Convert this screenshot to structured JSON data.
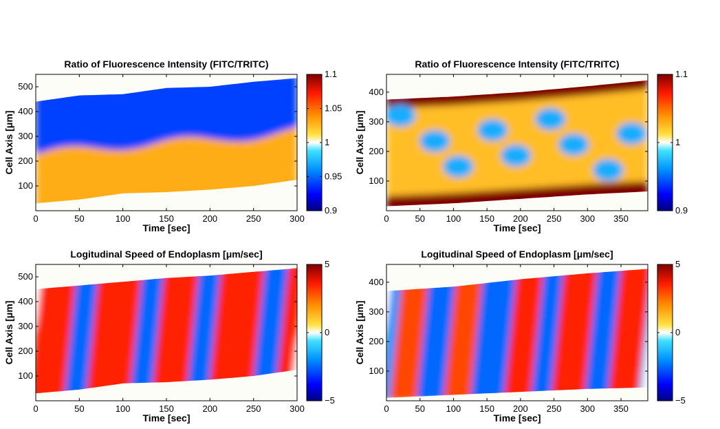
{
  "chart_data": [
    {
      "type": "heatmap",
      "title": "Ratio of Fluorescence Intensity (FITC/TRITC)",
      "xlabel": "Time [sec]",
      "ylabel": "Cell Axis [μm]",
      "xlim": [
        0,
        300
      ],
      "ylim": [
        0,
        550
      ],
      "xticks": [
        "0",
        "50",
        "100",
        "150",
        "200",
        "250",
        "300"
      ],
      "xtick_values": [
        0,
        50,
        100,
        150,
        200,
        250,
        300
      ],
      "yticks": [
        "100",
        "200",
        "300",
        "400",
        "500"
      ],
      "ytick_values": [
        100,
        200,
        300,
        400,
        500
      ],
      "colorbar": {
        "range": [
          0.9,
          1.1
        ],
        "center": 1.0,
        "ticks": [
          "1.1",
          "1.05",
          "1",
          "0.95",
          "0.9"
        ],
        "tick_values": [
          1.1,
          1.05,
          1.0,
          0.95,
          0.9
        ]
      },
      "cell_bounds": {
        "lower": [
          [
            0,
            30
          ],
          [
            50,
            45
          ],
          [
            100,
            70
          ],
          [
            150,
            75
          ],
          [
            200,
            85
          ],
          [
            250,
            100
          ],
          [
            300,
            125
          ]
        ],
        "upper": [
          [
            0,
            440
          ],
          [
            50,
            465
          ],
          [
            100,
            470
          ],
          [
            150,
            495
          ],
          [
            200,
            500
          ],
          [
            250,
            520
          ],
          [
            300,
            535
          ]
        ]
      },
      "bands": [
        {
          "region": "upper",
          "value": 0.94,
          "description": "blue band"
        },
        {
          "region": "lower",
          "value": 1.03,
          "description": "orange-yellow band"
        }
      ]
    },
    {
      "type": "heatmap",
      "title": "Ratio of Fluorescence Intensity (FITC/TRITC)",
      "xlabel": "Time [sec]",
      "ylabel": "Cell Axis [μm]",
      "xlim": [
        0,
        390
      ],
      "ylim": [
        0,
        460
      ],
      "xticks": [
        "0",
        "50",
        "100",
        "150",
        "200",
        "250",
        "300",
        "350"
      ],
      "xtick_values": [
        0,
        50,
        100,
        150,
        200,
        250,
        300,
        350
      ],
      "yticks": [
        "100",
        "200",
        "300",
        "400"
      ],
      "ytick_values": [
        100,
        200,
        300,
        400
      ],
      "colorbar": {
        "range": [
          0.9,
          1.1
        ],
        "center": 1.0,
        "ticks": [
          "1.1",
          "1",
          "0.9"
        ],
        "tick_values": [
          1.1,
          1.0,
          0.9
        ]
      },
      "cell_bounds": {
        "lower": [
          [
            0,
            15
          ],
          [
            100,
            25
          ],
          [
            200,
            40
          ],
          [
            300,
            55
          ],
          [
            390,
            65
          ]
        ],
        "upper": [
          [
            0,
            375
          ],
          [
            100,
            385
          ],
          [
            200,
            400
          ],
          [
            300,
            420
          ],
          [
            390,
            440
          ]
        ]
      },
      "bands": [
        {
          "region": "edges",
          "value": 1.1,
          "description": "dark red rims"
        },
        {
          "region": "interior",
          "value": 0.97,
          "description": "patchy blue/yellow"
        }
      ]
    },
    {
      "type": "heatmap",
      "title": "Logitudinal Speed of Endoplasm [μm/sec]",
      "xlabel": "Time [sec]",
      "ylabel": "Cell Axis [μm]",
      "xlim": [
        0,
        300
      ],
      "ylim": [
        0,
        550
      ],
      "xticks": [
        "0",
        "50",
        "100",
        "150",
        "200",
        "250",
        "300"
      ],
      "xtick_values": [
        0,
        50,
        100,
        150,
        200,
        250,
        300
      ],
      "yticks": [
        "100",
        "200",
        "300",
        "400",
        "500"
      ],
      "ytick_values": [
        100,
        200,
        300,
        400,
        500
      ],
      "colorbar": {
        "range": [
          -5,
          5
        ],
        "center": 0,
        "ticks": [
          "5",
          "0",
          "−5"
        ],
        "tick_values": [
          5,
          0,
          -5
        ]
      },
      "cell_bounds": {
        "lower": [
          [
            0,
            30
          ],
          [
            50,
            45
          ],
          [
            100,
            70
          ],
          [
            150,
            75
          ],
          [
            200,
            85
          ],
          [
            250,
            100
          ],
          [
            300,
            125
          ]
        ],
        "upper": [
          [
            0,
            450
          ],
          [
            50,
            465
          ],
          [
            100,
            480
          ],
          [
            150,
            495
          ],
          [
            200,
            505
          ],
          [
            250,
            520
          ],
          [
            300,
            535
          ]
        ]
      },
      "stripes": [
        {
          "t_start": 0,
          "t_end": 40,
          "value": 3.5
        },
        {
          "t_start": 40,
          "t_end": 65,
          "value": -2.5
        },
        {
          "t_start": 65,
          "t_end": 115,
          "value": 3.5
        },
        {
          "t_start": 115,
          "t_end": 140,
          "value": -2.5
        },
        {
          "t_start": 140,
          "t_end": 180,
          "value": 3.5
        },
        {
          "t_start": 180,
          "t_end": 205,
          "value": -2.5
        },
        {
          "t_start": 205,
          "t_end": 255,
          "value": 3.5
        },
        {
          "t_start": 255,
          "t_end": 282,
          "value": -2.5
        },
        {
          "t_start": 282,
          "t_end": 300,
          "value": 3.5
        }
      ]
    },
    {
      "type": "heatmap",
      "title": "Logitudinal Speed of Endoplasm [μm/sec]",
      "xlabel": "Time [sec]",
      "ylabel": "Cell Axis [μm]",
      "xlim": [
        0,
        390
      ],
      "ylim": [
        0,
        460
      ],
      "xticks": [
        "0",
        "50",
        "100",
        "150",
        "200",
        "250",
        "300",
        "350"
      ],
      "xtick_values": [
        0,
        50,
        100,
        150,
        200,
        250,
        300,
        350
      ],
      "yticks": [
        "100",
        "200",
        "300",
        "400"
      ],
      "ytick_values": [
        100,
        200,
        300,
        400
      ],
      "colorbar": {
        "range": [
          -5,
          5
        ],
        "center": 0,
        "ticks": [
          "5",
          "0",
          "−5"
        ],
        "tick_values": [
          5,
          0,
          -5
        ]
      },
      "cell_bounds": {
        "lower": [
          [
            0,
            10
          ],
          [
            100,
            20
          ],
          [
            200,
            30
          ],
          [
            300,
            40
          ],
          [
            390,
            45
          ]
        ],
        "upper": [
          [
            0,
            370
          ],
          [
            100,
            385
          ],
          [
            200,
            410
          ],
          [
            300,
            430
          ],
          [
            390,
            445
          ]
        ]
      },
      "stripes": [
        {
          "t_start": 0,
          "t_end": 15,
          "value": -2.0
        },
        {
          "t_start": 15,
          "t_end": 55,
          "value": 3.0
        },
        {
          "t_start": 55,
          "t_end": 95,
          "value": -2.5
        },
        {
          "t_start": 95,
          "t_end": 135,
          "value": 3.0
        },
        {
          "t_start": 135,
          "t_end": 185,
          "value": -2.5
        },
        {
          "t_start": 185,
          "t_end": 225,
          "value": 3.5
        },
        {
          "t_start": 225,
          "t_end": 255,
          "value": -2.5
        },
        {
          "t_start": 255,
          "t_end": 305,
          "value": 3.5
        },
        {
          "t_start": 305,
          "t_end": 340,
          "value": -2.5
        },
        {
          "t_start": 340,
          "t_end": 385,
          "value": 3.5
        },
        {
          "t_start": 385,
          "t_end": 390,
          "value": -1.5
        }
      ]
    }
  ]
}
